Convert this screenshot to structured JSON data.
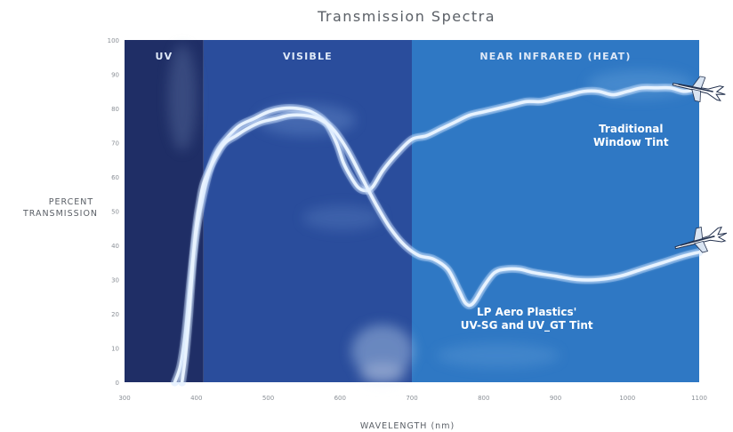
{
  "chart_data": {
    "type": "line",
    "title": "Transmission Spectra",
    "xlabel": "WAVELENGTH (nm)",
    "ylabel_lines": [
      "PERCENT",
      "TRANSMISSION"
    ],
    "xlim": [
      300,
      1100
    ],
    "ylim": [
      0,
      100
    ],
    "x_ticks": [
      300,
      400,
      500,
      600,
      700,
      800,
      900,
      1000,
      1100
    ],
    "y_ticks": [
      0,
      10,
      20,
      30,
      40,
      50,
      60,
      70,
      80,
      90,
      100
    ],
    "grid": false,
    "legend": "none",
    "regions": [
      {
        "label": "UV",
        "from": 300,
        "to": 410,
        "color": "#1f2e66"
      },
      {
        "label": "VISIBLE",
        "from": 410,
        "to": 700,
        "color": "#2a4d9c"
      },
      {
        "label": "NEAR INFRARED (HEAT)",
        "from": 700,
        "to": 1100,
        "color": "#2f78c4"
      }
    ],
    "series": [
      {
        "name": "Traditional Window Tint",
        "label_lines": [
          "Traditional",
          "Window Tint"
        ],
        "label_at": [
          1005,
          73
        ],
        "x": [
          370,
          378,
          385,
          392,
          400,
          410,
          420,
          430,
          445,
          460,
          480,
          500,
          520,
          540,
          560,
          580,
          595,
          605,
          615,
          625,
          635,
          645,
          660,
          680,
          700,
          720,
          740,
          760,
          780,
          800,
          820,
          840,
          860,
          880,
          900,
          920,
          940,
          960,
          980,
          1000,
          1020,
          1040,
          1060,
          1080,
          1100
        ],
        "values": [
          0,
          5,
          15,
          30,
          44,
          55,
          63,
          68,
          72,
          75,
          77,
          79,
          80,
          80,
          79,
          76,
          70,
          64,
          60,
          57,
          56,
          57,
          62,
          67,
          71,
          72,
          74,
          76,
          78,
          79,
          80,
          81,
          82,
          82,
          83,
          84,
          85,
          85,
          84,
          85,
          86,
          86,
          86,
          85,
          86
        ],
        "color": "#e8f3ff"
      },
      {
        "name": "LP Aero Plastics' UV-SG and UV_GT Tint",
        "label_lines": [
          "LP Aero Plastics'",
          "UV-SG and UV_GT Tint"
        ],
        "label_at": [
          860,
          19.5
        ],
        "x": [
          380,
          385,
          390,
          395,
          400,
          405,
          410,
          420,
          430,
          440,
          455,
          470,
          490,
          510,
          530,
          550,
          570,
          590,
          610,
          630,
          650,
          670,
          690,
          710,
          730,
          750,
          765,
          775,
          785,
          800,
          815,
          830,
          850,
          870,
          900,
          930,
          960,
          990,
          1020,
          1050,
          1080,
          1100
        ],
        "values": [
          0,
          8,
          20,
          35,
          46,
          53,
          58,
          63,
          67,
          70,
          72,
          74,
          76,
          77,
          78,
          78,
          77,
          74,
          68,
          60,
          52,
          45,
          40,
          37,
          36,
          33,
          27,
          23,
          23,
          28,
          32,
          33,
          33,
          32,
          31,
          30,
          30,
          31,
          33,
          35,
          37,
          38
        ],
        "color": "#e8f3ff"
      }
    ]
  }
}
